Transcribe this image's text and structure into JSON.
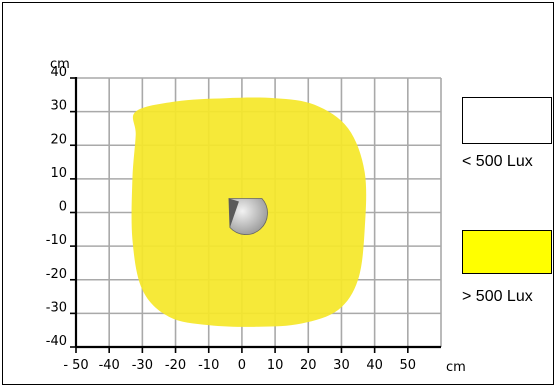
{
  "chart_data": {
    "type": "heatmap",
    "title": "",
    "xlabel": "cm",
    "ylabel": "cm",
    "xlim": [
      -50,
      60
    ],
    "ylim": [
      -40,
      40
    ],
    "x_ticks": [
      -50,
      -40,
      -30,
      -20,
      -10,
      0,
      10,
      20,
      30,
      40,
      50
    ],
    "x_tick_labels": [
      "- 50",
      "-40",
      "-30",
      "-20",
      "-10",
      "0",
      "10",
      "20",
      "30",
      "40",
      "50"
    ],
    "y_ticks": [
      40,
      30,
      20,
      10,
      0,
      -10,
      -20,
      -30,
      -40
    ],
    "y_tick_labels": [
      "40",
      "30",
      "20",
      "10",
      "0",
      "-10",
      "-20",
      "-30",
      "-40"
    ],
    "grid": true,
    "illuminated_region": {
      "label": "> 500 Lux",
      "color": "#f5e72a",
      "outline": [
        [
          -32,
          30
        ],
        [
          -20,
          33
        ],
        [
          -5,
          34
        ],
        [
          10,
          34
        ],
        [
          22,
          32
        ],
        [
          32,
          25
        ],
        [
          37,
          12
        ],
        [
          37,
          -5
        ],
        [
          35,
          -20
        ],
        [
          29,
          -29
        ],
        [
          18,
          -33
        ],
        [
          5,
          -34
        ],
        [
          -10,
          -33.5
        ],
        [
          -22,
          -31
        ],
        [
          -30,
          -23
        ],
        [
          -33,
          -8
        ],
        [
          -33,
          10
        ],
        [
          -32,
          23
        ]
      ]
    },
    "sensor_position": [
      0,
      0
    ],
    "legend": [
      {
        "label": "< 500 Lux",
        "color": "#ffffff"
      },
      {
        "label": "> 500 Lux",
        "color": "#ffff00"
      }
    ],
    "legend_position": "right"
  }
}
